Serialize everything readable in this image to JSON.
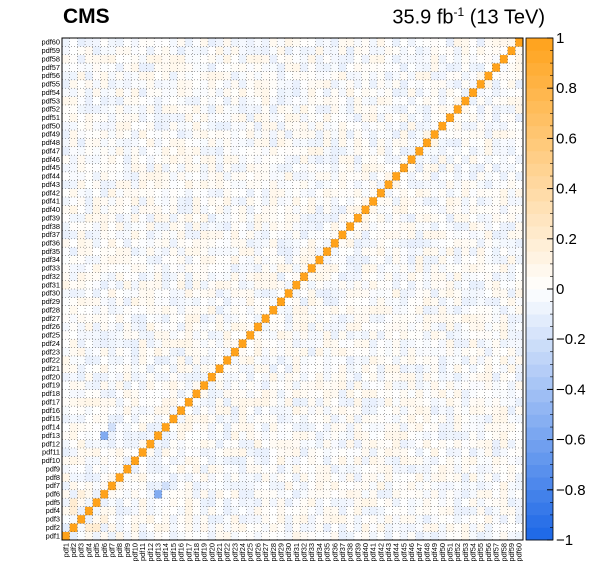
{
  "header": {
    "experiment": "CMS",
    "luminosity_value": "35.9",
    "luminosity_unit": "fb",
    "luminosity_exponent": "-1",
    "energy": "(13 TeV)"
  },
  "chart_data": {
    "type": "heatmap",
    "title": "",
    "xlabel": "",
    "ylabel": "",
    "x_categories": [
      "pdf1",
      "pdf2",
      "pdf3",
      "pdf4",
      "pdf5",
      "pdf6",
      "pdf7",
      "pdf8",
      "pdf9",
      "pdf10",
      "pdf11",
      "pdf12",
      "pdf13",
      "pdf14",
      "pdf15",
      "pdf16",
      "pdf17",
      "pdf18",
      "pdf19",
      "pdf20",
      "pdf21",
      "pdf22",
      "pdf23",
      "pdf24",
      "pdf25",
      "pdf26",
      "pdf27",
      "pdf28",
      "pdf29",
      "pdf30",
      "pdf31",
      "pdf32",
      "pdf33",
      "pdf34",
      "pdf35",
      "pdf36",
      "pdf37",
      "pdf38",
      "pdf39",
      "pdf40",
      "pdf41",
      "pdf42",
      "pdf43",
      "pdf44",
      "pdf45",
      "pdf46",
      "pdf47",
      "pdf48",
      "pdf49",
      "pdf50",
      "pdf51",
      "pdf52",
      "pdf53",
      "pdf54",
      "pdf55",
      "pdf56",
      "pdf57",
      "pdf58",
      "pdf59",
      "pdf60"
    ],
    "y_categories": [
      "pdf1",
      "pdf2",
      "pdf3",
      "pdf4",
      "pdf5",
      "pdf6",
      "pdf7",
      "pdf8",
      "pdf9",
      "pdf10",
      "pdf11",
      "pdf12",
      "pdf13",
      "pdf14",
      "pdf15",
      "pdf16",
      "pdf17",
      "pdf18",
      "pdf19",
      "pdf20",
      "pdf21",
      "pdf22",
      "pdf23",
      "pdf24",
      "pdf25",
      "pdf26",
      "pdf27",
      "pdf28",
      "pdf29",
      "pdf30",
      "pdf31",
      "pdf32",
      "pdf33",
      "pdf34",
      "pdf35",
      "pdf36",
      "pdf37",
      "pdf38",
      "pdf39",
      "pdf40",
      "pdf41",
      "pdf42",
      "pdf43",
      "pdf44",
      "pdf45",
      "pdf46",
      "pdf47",
      "pdf48",
      "pdf49",
      "pdf50",
      "pdf51",
      "pdf52",
      "pdf53",
      "pdf54",
      "pdf55",
      "pdf56",
      "pdf57",
      "pdf58",
      "pdf59",
      "pdf60"
    ],
    "diagonal_value": 1,
    "off_diagonal_typical_range": [
      -0.1,
      0.1
    ],
    "notable_cells": [
      {
        "x": "pdf6",
        "y": "pdf13",
        "value": -0.55
      },
      {
        "x": "pdf13",
        "y": "pdf6",
        "value": -0.55
      },
      {
        "x": "pdf4",
        "y": "pdf4",
        "value": 1
      },
      {
        "x": "pdf2",
        "y": "pdf5",
        "value": 0.2
      },
      {
        "x": "pdf5",
        "y": "pdf2",
        "value": 0.2
      },
      {
        "x": "pdf3",
        "y": "pdf6",
        "value": 0.15
      },
      {
        "x": "pdf6",
        "y": "pdf3",
        "value": 0.15
      },
      {
        "x": "pdf2",
        "y": "pdf4",
        "value": 0.18
      },
      {
        "x": "pdf4",
        "y": "pdf2",
        "value": 0.18
      },
      {
        "x": "pdf5",
        "y": "pdf5",
        "value": 1
      },
      {
        "x": "pdf1",
        "y": "pdf2",
        "value": -0.12
      },
      {
        "x": "pdf2",
        "y": "pdf1",
        "value": -0.12
      },
      {
        "x": "pdf7",
        "y": "pdf14",
        "value": -0.2
      },
      {
        "x": "pdf14",
        "y": "pdf7",
        "value": -0.2
      }
    ],
    "zlim": [
      -1,
      1
    ],
    "colorbar_ticks": [
      "1",
      "0.8",
      "0.6",
      "0.4",
      "0.2",
      "0",
      "−0.2",
      "−0.4",
      "−0.6",
      "−0.8",
      "−1"
    ],
    "colors": {
      "positive_max": "#ffa21a",
      "neutral": "#ffffff",
      "negative_max": "#1a66e6"
    },
    "grid": true
  }
}
